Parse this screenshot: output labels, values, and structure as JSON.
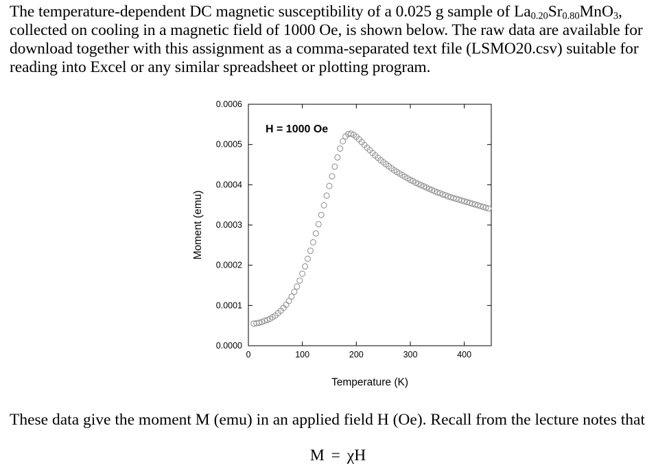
{
  "intro": {
    "line1_a": "The temperature-dependent DC magnetic susceptibility of a 0.025 g sample of La",
    "line1_sub1": "0.20",
    "line1_b": "Sr",
    "line1_sub2": "0.80",
    "line1_c": "MnO",
    "line1_sub3": "3",
    "line1_d": ",",
    "line2": "collected on cooling in a magnetic field of 1000 Oe, is shown below. The raw data are available for",
    "line3": "download together with this assignment as a comma-separated text file (LSMO20.csv) suitable for",
    "line4": "reading into Excel or any similar spreadsheet or plotting program."
  },
  "after_chart": {
    "text": "These data give the moment M (emu) in an applied field H (Oe). Recall from the lecture notes that"
  },
  "equation": {
    "lhs": "M",
    "op": "=",
    "chi": "χ",
    "rhs": "H"
  },
  "chart_data": {
    "type": "scatter",
    "annotation": "H = 1000 Oe",
    "xlabel": "Temperature (K)",
    "ylabel": "Moment (emu)",
    "xlim": [
      0,
      450
    ],
    "ylim": [
      0,
      0.0006
    ],
    "x_ticks": [
      "0",
      "100",
      "200",
      "300",
      "400"
    ],
    "x_tick_values": [
      0,
      100,
      200,
      300,
      400
    ],
    "y_ticks": [
      "0.0000",
      "0.0001",
      "0.0002",
      "0.0003",
      "0.0004",
      "0.0005",
      "0.0006"
    ],
    "y_tick_values": [
      0,
      0.0001,
      0.0002,
      0.0003,
      0.0004,
      0.0005,
      0.0006
    ],
    "grid": false,
    "legend": "none",
    "marker": "open-circle",
    "marker_color": "#8a8a8a",
    "x": [
      10,
      15,
      20,
      25,
      30,
      35,
      40,
      45,
      50,
      55,
      60,
      65,
      70,
      75,
      80,
      85,
      90,
      95,
      100,
      105,
      110,
      115,
      120,
      125,
      130,
      135,
      140,
      145,
      150,
      155,
      160,
      165,
      170,
      175,
      180,
      185,
      190,
      195,
      200,
      205,
      210,
      215,
      220,
      225,
      230,
      235,
      240,
      245,
      250,
      255,
      260,
      265,
      270,
      275,
      280,
      285,
      290,
      295,
      300,
      305,
      310,
      315,
      320,
      325,
      330,
      335,
      340,
      345,
      350,
      355,
      360,
      365,
      370,
      375,
      380,
      385,
      390,
      395,
      400,
      405,
      410,
      415,
      420,
      425,
      430,
      435,
      440,
      445
    ],
    "y": [
      5.5e-05,
      5.6e-05,
      5.7e-05,
      5.9e-05,
      6.2e-05,
      6.4e-05,
      6.7e-05,
      7.1e-05,
      7.5e-05,
      8.1e-05,
      8.7e-05,
      9.4e-05,
      0.000102,
      0.000111,
      0.000122,
      0.000134,
      0.000147,
      0.000162,
      0.000179,
      0.000197,
      0.000216,
      0.000236,
      0.000257,
      0.000279,
      0.000302,
      0.000325,
      0.000349,
      0.000373,
      0.000397,
      0.000421,
      0.000445,
      0.000468,
      0.00049,
      0.000508,
      0.00052,
      0.000526,
      0.000527,
      0.000524,
      0.000519,
      0.000513,
      0.000506,
      0.000499,
      0.000492,
      0.000486,
      0.000479,
      0.000473,
      0.000467,
      0.000461,
      0.000456,
      0.000451,
      0.000446,
      0.000441,
      0.000436,
      0.000432,
      0.000428,
      0.000424,
      0.00042,
      0.000416,
      0.000412,
      0.000409,
      0.000405,
      0.000402,
      0.000399,
      0.000396,
      0.000393,
      0.00039,
      0.000387,
      0.000384,
      0.000381,
      0.000379,
      0.000376,
      0.000374,
      0.000371,
      0.000369,
      0.000367,
      0.000365,
      0.000363,
      0.000361,
      0.000359,
      0.000357,
      0.000355,
      0.000353,
      0.000351,
      0.000349,
      0.000347,
      0.000345,
      0.000343,
      0.000341
    ]
  }
}
